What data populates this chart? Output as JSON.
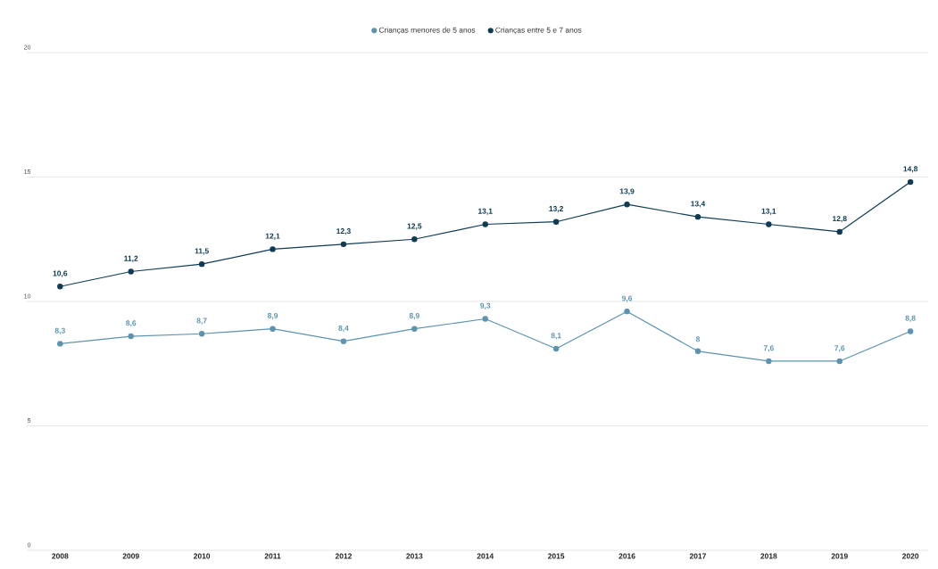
{
  "chart_data": {
    "type": "line",
    "categories": [
      "2008",
      "2009",
      "2010",
      "2011",
      "2012",
      "2013",
      "2014",
      "2015",
      "2016",
      "2017",
      "2018",
      "2019",
      "2020"
    ],
    "series": [
      {
        "name": "Crianças menores de 5 anos",
        "color": "#5b93b0",
        "values": [
          8.3,
          8.6,
          8.7,
          8.9,
          8.4,
          8.9,
          9.3,
          8.1,
          9.6,
          8.0,
          7.6,
          7.6,
          8.8
        ],
        "value_labels": [
          "8,3",
          "8,6",
          "8,7",
          "8,9",
          "8,4",
          "8,9",
          "9,3",
          "8,1",
          "9,6",
          "8",
          "7,6",
          "7,6",
          "8,8"
        ]
      },
      {
        "name": "Crianças entre 5 e 7 anos",
        "color": "#0d3b54",
        "values": [
          10.6,
          11.2,
          11.5,
          12.1,
          12.3,
          12.5,
          13.1,
          13.2,
          13.9,
          13.4,
          13.1,
          12.8,
          14.8
        ],
        "value_labels": [
          "10,6",
          "11,2",
          "11,5",
          "12,1",
          "12,3",
          "12,5",
          "13,1",
          "13,2",
          "13,9",
          "13,4",
          "13,1",
          "12,8",
          "14,8"
        ]
      }
    ],
    "ylim": [
      0,
      20
    ],
    "yticks": [
      0,
      5,
      10,
      15,
      20
    ],
    "grid": "y",
    "legend": "top",
    "marker": "circle",
    "line_style": "solid"
  }
}
